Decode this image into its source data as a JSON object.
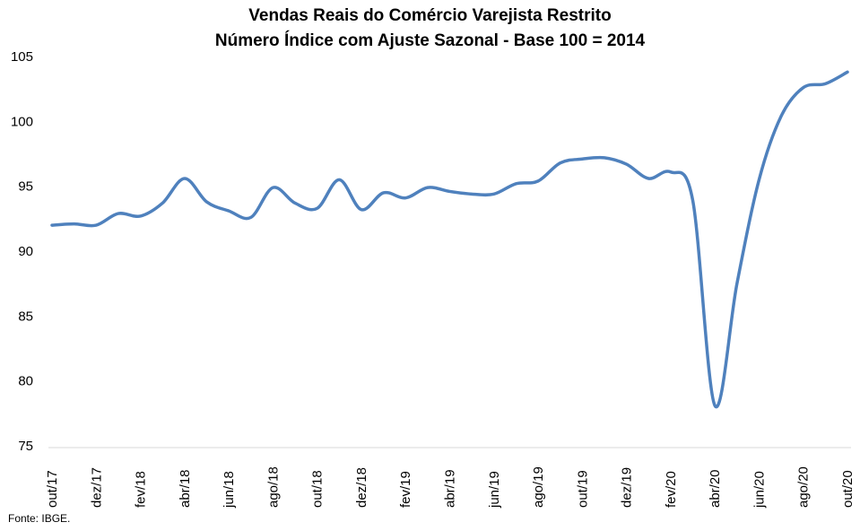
{
  "chart_data": {
    "type": "line",
    "title_line1": "Vendas Reais do Comércio Varejista Restrito",
    "title_line2": "Número Índice com Ajuste Sazonal - Base 100 = 2014",
    "xlabel": "",
    "ylabel": "",
    "ylim": [
      75,
      105
    ],
    "yticks": [
      75,
      80,
      85,
      90,
      95,
      100,
      105
    ],
    "grid": false,
    "x_tick_labels": [
      "out/17",
      "dez/17",
      "fev/18",
      "abr/18",
      "jun/18",
      "ago/18",
      "out/18",
      "dez/18",
      "fev/19",
      "abr/19",
      "jun/19",
      "ago/19",
      "out/19",
      "dez/19",
      "fev/20",
      "abr/20",
      "jun/20",
      "ago/20",
      "out/20"
    ],
    "x": [
      "out/17",
      "nov/17",
      "dez/17",
      "jan/18",
      "fev/18",
      "mar/18",
      "abr/18",
      "mai/18",
      "jun/18",
      "jul/18",
      "ago/18",
      "set/18",
      "out/18",
      "nov/18",
      "dez/18",
      "jan/19",
      "fev/19",
      "mar/19",
      "abr/19",
      "mai/19",
      "jun/19",
      "jul/19",
      "ago/19",
      "set/19",
      "out/19",
      "nov/19",
      "dez/19",
      "jan/20",
      "fev/20",
      "mar/20",
      "abr/20",
      "mai/20",
      "jun/20",
      "jul/20",
      "ago/20",
      "set/20",
      "out/20"
    ],
    "series": [
      {
        "color": "#4f81bd",
        "values": [
          92.0,
          92.1,
          92.0,
          92.9,
          92.7,
          93.7,
          95.6,
          93.8,
          93.1,
          92.6,
          94.9,
          93.7,
          93.3,
          95.5,
          93.2,
          94.5,
          94.1,
          94.9,
          94.6,
          94.4,
          94.4,
          95.2,
          95.4,
          96.8,
          97.1,
          97.2,
          96.7,
          95.6,
          96.1,
          93.9,
          78.1,
          87.5,
          95.5,
          100.4,
          102.6,
          102.9,
          103.8
        ]
      }
    ]
  },
  "source": "Fonte: IBGE."
}
